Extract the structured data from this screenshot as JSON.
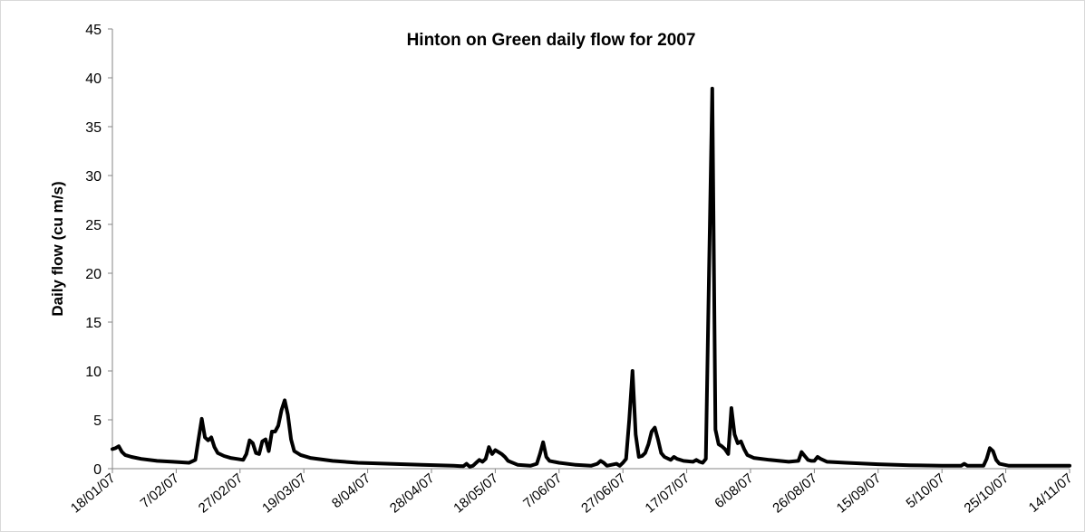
{
  "chart_data": {
    "type": "line",
    "title": "Hinton on Green daily flow for 2007",
    "xlabel": "",
    "ylabel": "Daily flow (cu m/s)",
    "ylim": [
      0,
      45
    ],
    "yticks": [
      0,
      5,
      10,
      15,
      20,
      25,
      30,
      35,
      40,
      45
    ],
    "xlim": [
      "2007-01-18",
      "2007-11-14"
    ],
    "xticks": [
      "18/01/07",
      "7/02/07",
      "27/02/07",
      "19/03/07",
      "8/04/07",
      "28/04/07",
      "18/05/07",
      "7/06/07",
      "27/06/07",
      "17/07/07",
      "6/08/07",
      "26/08/07",
      "15/09/07",
      "5/10/07",
      "25/10/07",
      "14/11/07"
    ],
    "grid": false,
    "legend": "none",
    "line_color": "#000000",
    "series": [
      {
        "points": [
          [
            "2007-01-18",
            2.0
          ],
          [
            "2007-01-19",
            2.1
          ],
          [
            "2007-01-20",
            2.3
          ],
          [
            "2007-01-21",
            1.7
          ],
          [
            "2007-01-22",
            1.4
          ],
          [
            "2007-01-24",
            1.2
          ],
          [
            "2007-01-27",
            1.0
          ],
          [
            "2007-02-01",
            0.8
          ],
          [
            "2007-02-06",
            0.7
          ],
          [
            "2007-02-11",
            0.6
          ],
          [
            "2007-02-13",
            0.9
          ],
          [
            "2007-02-14",
            3.0
          ],
          [
            "2007-02-15",
            5.1
          ],
          [
            "2007-02-16",
            3.2
          ],
          [
            "2007-02-17",
            2.9
          ],
          [
            "2007-02-18",
            3.2
          ],
          [
            "2007-02-19",
            2.2
          ],
          [
            "2007-02-20",
            1.6
          ],
          [
            "2007-02-22",
            1.3
          ],
          [
            "2007-02-24",
            1.1
          ],
          [
            "2007-02-26",
            1.0
          ],
          [
            "2007-02-28",
            0.9
          ],
          [
            "2007-03-01",
            1.5
          ],
          [
            "2007-03-02",
            2.9
          ],
          [
            "2007-03-03",
            2.6
          ],
          [
            "2007-03-04",
            1.6
          ],
          [
            "2007-03-05",
            1.5
          ],
          [
            "2007-03-06",
            2.8
          ],
          [
            "2007-03-07",
            3.0
          ],
          [
            "2007-03-08",
            1.8
          ],
          [
            "2007-03-09",
            3.8
          ],
          [
            "2007-03-10",
            3.8
          ],
          [
            "2007-03-11",
            4.4
          ],
          [
            "2007-03-12",
            6.0
          ],
          [
            "2007-03-13",
            7.0
          ],
          [
            "2007-03-14",
            5.5
          ],
          [
            "2007-03-15",
            3.0
          ],
          [
            "2007-03-16",
            1.8
          ],
          [
            "2007-03-18",
            1.4
          ],
          [
            "2007-03-21",
            1.1
          ],
          [
            "2007-03-28",
            0.8
          ],
          [
            "2007-04-05",
            0.6
          ],
          [
            "2007-04-15",
            0.5
          ],
          [
            "2007-04-25",
            0.4
          ],
          [
            "2007-05-05",
            0.3
          ],
          [
            "2007-05-08",
            0.25
          ],
          [
            "2007-05-09",
            0.5
          ],
          [
            "2007-05-10",
            0.2
          ],
          [
            "2007-05-11",
            0.3
          ],
          [
            "2007-05-12",
            0.6
          ],
          [
            "2007-05-13",
            0.9
          ],
          [
            "2007-05-14",
            0.7
          ],
          [
            "2007-05-15",
            1.0
          ],
          [
            "2007-05-16",
            2.2
          ],
          [
            "2007-05-17",
            1.5
          ],
          [
            "2007-05-18",
            1.9
          ],
          [
            "2007-05-19",
            1.7
          ],
          [
            "2007-05-20",
            1.5
          ],
          [
            "2007-05-21",
            1.2
          ],
          [
            "2007-05-22",
            0.8
          ],
          [
            "2007-05-25",
            0.4
          ],
          [
            "2007-05-29",
            0.3
          ],
          [
            "2007-05-31",
            0.5
          ],
          [
            "2007-06-01",
            1.5
          ],
          [
            "2007-06-02",
            2.7
          ],
          [
            "2007-06-03",
            1.2
          ],
          [
            "2007-06-04",
            0.8
          ],
          [
            "2007-06-07",
            0.6
          ],
          [
            "2007-06-12",
            0.4
          ],
          [
            "2007-06-17",
            0.3
          ],
          [
            "2007-06-19",
            0.5
          ],
          [
            "2007-06-20",
            0.8
          ],
          [
            "2007-06-21",
            0.6
          ],
          [
            "2007-06-22",
            0.3
          ],
          [
            "2007-06-25",
            0.5
          ],
          [
            "2007-06-26",
            0.3
          ],
          [
            "2007-06-27",
            0.6
          ],
          [
            "2007-06-28",
            1.0
          ],
          [
            "2007-06-29",
            5.0
          ],
          [
            "2007-06-30",
            10.0
          ],
          [
            "2007-07-01",
            3.5
          ],
          [
            "2007-07-02",
            1.2
          ],
          [
            "2007-07-03",
            1.3
          ],
          [
            "2007-07-04",
            1.6
          ],
          [
            "2007-07-05",
            2.5
          ],
          [
            "2007-07-06",
            3.8
          ],
          [
            "2007-07-07",
            4.2
          ],
          [
            "2007-07-08",
            3.0
          ],
          [
            "2007-07-09",
            1.6
          ],
          [
            "2007-07-10",
            1.2
          ],
          [
            "2007-07-12",
            0.9
          ],
          [
            "2007-07-13",
            1.2
          ],
          [
            "2007-07-14",
            1.0
          ],
          [
            "2007-07-16",
            0.8
          ],
          [
            "2007-07-19",
            0.7
          ],
          [
            "2007-07-20",
            0.9
          ],
          [
            "2007-07-21",
            0.7
          ],
          [
            "2007-07-22",
            0.6
          ],
          [
            "2007-07-23",
            1.0
          ],
          [
            "2007-07-24",
            20.0
          ],
          [
            "2007-07-25",
            38.9
          ],
          [
            "2007-07-26",
            4.0
          ],
          [
            "2007-07-27",
            2.5
          ],
          [
            "2007-07-28",
            2.3
          ],
          [
            "2007-07-29",
            2.0
          ],
          [
            "2007-07-30",
            1.5
          ],
          [
            "2007-07-31",
            6.2
          ],
          [
            "2007-08-01",
            3.5
          ],
          [
            "2007-08-02",
            2.6
          ],
          [
            "2007-08-03",
            2.8
          ],
          [
            "2007-08-04",
            2.0
          ],
          [
            "2007-08-05",
            1.4
          ],
          [
            "2007-08-07",
            1.1
          ],
          [
            "2007-08-12",
            0.9
          ],
          [
            "2007-08-18",
            0.7
          ],
          [
            "2007-08-21",
            0.8
          ],
          [
            "2007-08-22",
            1.7
          ],
          [
            "2007-08-23",
            1.3
          ],
          [
            "2007-08-24",
            0.9
          ],
          [
            "2007-08-25",
            0.8
          ],
          [
            "2007-08-26",
            0.8
          ],
          [
            "2007-08-27",
            1.2
          ],
          [
            "2007-08-28",
            1.0
          ],
          [
            "2007-08-30",
            0.7
          ],
          [
            "2007-09-05",
            0.6
          ],
          [
            "2007-09-15",
            0.45
          ],
          [
            "2007-09-25",
            0.35
          ],
          [
            "2007-10-05",
            0.3
          ],
          [
            "2007-10-11",
            0.3
          ],
          [
            "2007-10-12",
            0.5
          ],
          [
            "2007-10-13",
            0.3
          ],
          [
            "2007-10-18",
            0.3
          ],
          [
            "2007-10-19",
            1.0
          ],
          [
            "2007-10-20",
            2.1
          ],
          [
            "2007-10-21",
            1.8
          ],
          [
            "2007-10-22",
            0.9
          ],
          [
            "2007-10-23",
            0.5
          ],
          [
            "2007-10-26",
            0.3
          ],
          [
            "2007-11-05",
            0.3
          ],
          [
            "2007-11-14",
            0.3
          ]
        ]
      }
    ]
  }
}
